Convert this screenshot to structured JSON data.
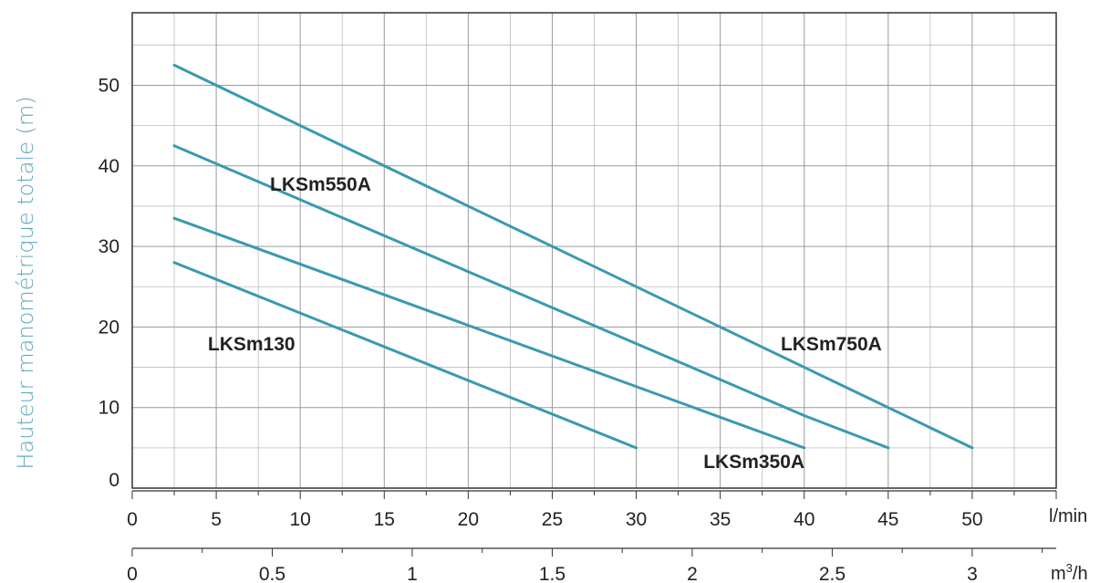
{
  "chart_data": {
    "type": "line",
    "ylabel": "Hauteur manométrique totale (m)",
    "xlabel_primary": "l/min",
    "xlabel_secondary_base": "m",
    "xlabel_secondary_exp": "3",
    "xlabel_secondary_suffix": "/h",
    "xlim": [
      0,
      55
    ],
    "ylim": [
      0,
      59
    ],
    "x_ticks": [
      0,
      5,
      10,
      15,
      20,
      25,
      30,
      35,
      40,
      45,
      50
    ],
    "y_ticks": [
      0,
      10,
      20,
      30,
      40,
      50
    ],
    "x2_ticks": [
      0,
      0.5,
      1,
      1.5,
      2,
      2.5,
      3
    ],
    "x2_factor": 16.6667,
    "grid": true,
    "line_color": "#3a9ab0",
    "ylabel_color": "#5fa9bd",
    "series": [
      {
        "name": "LKSm130",
        "x": [
          2.5,
          30
        ],
        "y": [
          28,
          5
        ]
      },
      {
        "name": "LKSm350A",
        "x": [
          2.5,
          40
        ],
        "y": [
          33.5,
          5
        ]
      },
      {
        "name": "LKSm550A",
        "x": [
          2.5,
          40,
          45
        ],
        "y": [
          42.5,
          9,
          5
        ]
      },
      {
        "name": "LKSm750A",
        "x": [
          2.5,
          50
        ],
        "y": [
          52.5,
          5
        ]
      }
    ],
    "annotations": [
      {
        "text": "LKSm550A",
        "x": 8.2,
        "y": 36.9
      },
      {
        "text": "LKSm130",
        "x": 4.5,
        "y": 17.1
      },
      {
        "text": "LKSm750A",
        "x": 38.6,
        "y": 17.1
      },
      {
        "text": "LKSm350A",
        "x": 34,
        "y": 2.5
      }
    ]
  }
}
